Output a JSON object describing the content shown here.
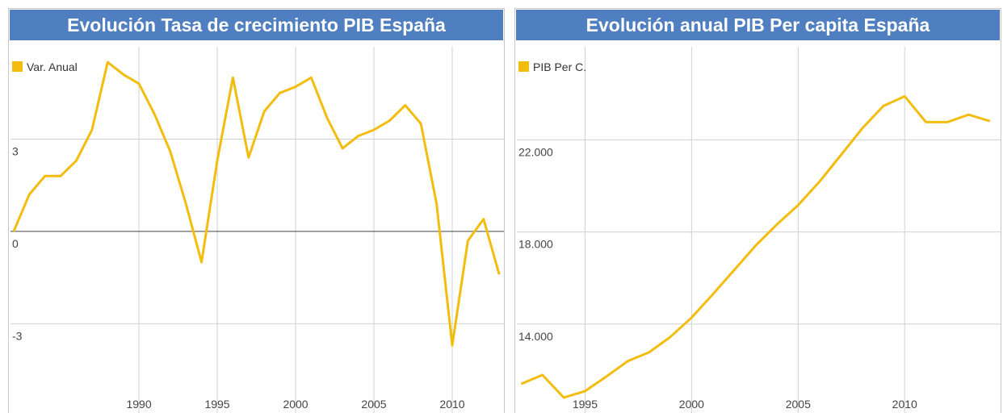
{
  "chart_data": [
    {
      "type": "line",
      "title": "Evolución Tasa de crecimiento PIB España",
      "x": [
        1982,
        1983,
        1984,
        1985,
        1986,
        1987,
        1988,
        1989,
        1990,
        1991,
        1992,
        1993,
        1994,
        1995,
        1996,
        1997,
        1998,
        1999,
        2000,
        2001,
        2002,
        2003,
        2004,
        2005,
        2006,
        2007,
        2008,
        2009,
        2010,
        2011,
        2012,
        2013
      ],
      "series": [
        {
          "name": "Var. Anual",
          "color": "#f2bd0e",
          "values": [
            0.0,
            1.2,
            1.8,
            1.8,
            2.3,
            3.3,
            5.5,
            5.1,
            4.8,
            3.8,
            2.6,
            0.9,
            -1.0,
            2.3,
            5.0,
            2.4,
            3.9,
            4.5,
            4.7,
            5.0,
            3.7,
            2.7,
            3.1,
            3.3,
            3.6,
            4.1,
            3.5,
            0.9,
            -3.7,
            -0.3,
            0.4,
            -1.4
          ]
        }
      ],
      "xlim": [
        1981.8,
        2013.3
      ],
      "xticks": [
        1990,
        1995,
        2000,
        2005,
        2010
      ],
      "ylim": [
        -5.9,
        6.0
      ],
      "yticks": [
        -3,
        0,
        3
      ],
      "grid": true
    },
    {
      "type": "line",
      "title": "Evolución anual PIB Per capita España",
      "x": [
        1992,
        1993,
        1994,
        1995,
        1996,
        1997,
        1998,
        1999,
        2000,
        2001,
        2002,
        2003,
        2004,
        2005,
        2006,
        2007,
        2008,
        2009,
        2010,
        2011,
        2012,
        2013,
        2014
      ],
      "series": [
        {
          "name": "PIB Per C.",
          "color": "#f2bd0e",
          "values": [
            11400,
            11790,
            10810,
            11090,
            11720,
            12390,
            12770,
            13440,
            14280,
            15300,
            16350,
            17400,
            18320,
            19160,
            20180,
            21330,
            22490,
            23470,
            23890,
            22770,
            22770,
            23090,
            22810
          ]
        }
      ],
      "xlim": [
        1991.8,
        2014.5
      ],
      "xticks": [
        1995,
        2000,
        2005,
        2010
      ],
      "ylim": [
        10140,
        26040
      ],
      "yticks": [
        {
          "value": 14000,
          "label": "14.000"
        },
        {
          "value": 18000,
          "label": "18.000"
        },
        {
          "value": 22000,
          "label": "22.000"
        }
      ],
      "grid": true
    }
  ]
}
